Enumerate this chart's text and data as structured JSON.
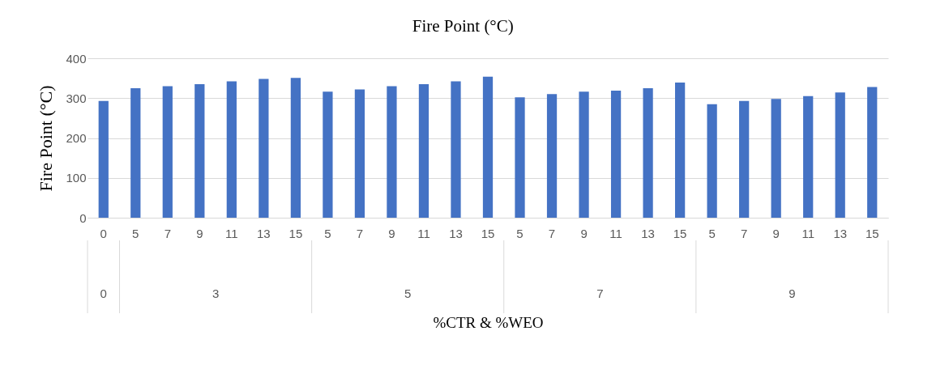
{
  "chart_data": {
    "type": "bar",
    "title": "Fire Point (°C)",
    "xlabel": "%CTR & %WEO",
    "ylabel": "Fire Point (°C)",
    "categories": [
      "0",
      "5",
      "7",
      "9",
      "11",
      "13",
      "15",
      "5",
      "7",
      "9",
      "11",
      "13",
      "15",
      "5",
      "7",
      "9",
      "11",
      "13",
      "15",
      "5",
      "7",
      "9",
      "11",
      "13",
      "15"
    ],
    "values": [
      293,
      325,
      330,
      335,
      342,
      348,
      351,
      316,
      322,
      330,
      335,
      342,
      354,
      302,
      310,
      316,
      319,
      325,
      339,
      285,
      293,
      298,
      305,
      314,
      328
    ],
    "color": "#4472c4",
    "ylim": [
      0,
      400
    ],
    "yticks": [
      0,
      100,
      200,
      300,
      400
    ],
    "grid": "y",
    "annotations": [
      "0",
      "3",
      "5",
      "7",
      "9"
    ]
  }
}
